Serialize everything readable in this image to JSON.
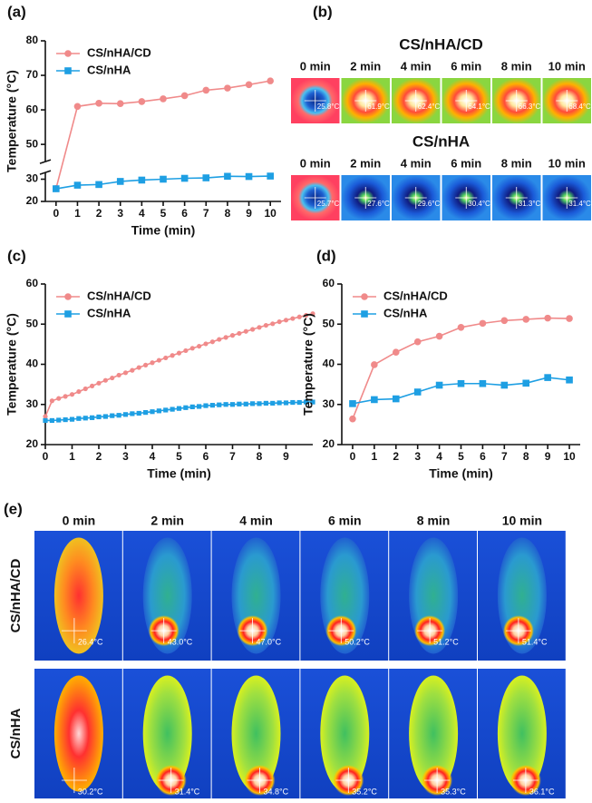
{
  "chart_data": [
    {
      "type": "line",
      "panel_label": "(a)",
      "xlabel": "Time (min)",
      "ylabel": "Temperature (°C)",
      "x": [
        0,
        1,
        2,
        3,
        4,
        5,
        6,
        7,
        8,
        9,
        10
      ],
      "xlim": [
        -0.5,
        10.5
      ],
      "xticks": [
        0,
        1,
        2,
        3,
        4,
        5,
        6,
        7,
        8,
        9,
        10
      ],
      "ylim": [
        20,
        80
      ],
      "ybreak": [
        33,
        45
      ],
      "yticks": [
        20,
        30,
        50,
        60,
        70,
        80
      ],
      "grid": false,
      "legend": "upper left",
      "series": [
        {
          "name": "CS/nHA/CD",
          "color": "#f08a8a",
          "marker": "circle",
          "values": [
            25.8,
            61.0,
            61.9,
            61.8,
            62.4,
            63.2,
            64.1,
            65.7,
            66.3,
            67.3,
            68.4
          ]
        },
        {
          "name": "CS/nHA",
          "color": "#1e9fe3",
          "marker": "square",
          "values": [
            25.7,
            27.3,
            27.6,
            29.0,
            29.6,
            30.0,
            30.4,
            30.6,
            31.3,
            31.2,
            31.4
          ]
        }
      ]
    },
    {
      "type": "line",
      "panel_label": "(c)",
      "xlabel": "Time (min)",
      "ylabel": "Temperature (°C)",
      "x": [
        0,
        0.25,
        0.5,
        0.75,
        1,
        1.25,
        1.5,
        1.75,
        2,
        2.25,
        2.5,
        2.75,
        3,
        3.25,
        3.5,
        3.75,
        4,
        4.25,
        4.5,
        4.75,
        5,
        5.25,
        5.5,
        5.75,
        6,
        6.25,
        6.5,
        6.75,
        7,
        7.25,
        7.5,
        7.75,
        8,
        8.25,
        8.5,
        8.75,
        9,
        9.25,
        9.5,
        9.75,
        10
      ],
      "xlim": [
        0,
        10
      ],
      "xticks": [
        0,
        1,
        2,
        3,
        4,
        5,
        6,
        7,
        8,
        9
      ],
      "ylim": [
        20,
        60
      ],
      "yticks": [
        20,
        30,
        40,
        50,
        60
      ],
      "grid": false,
      "legend": "upper left",
      "series": [
        {
          "name": "CS/nHA/CD",
          "color": "#f08a8a",
          "marker": "circle",
          "values": [
            27.0,
            30.9,
            31.5,
            32.0,
            32.5,
            33.2,
            33.9,
            34.6,
            35.3,
            36.0,
            36.6,
            37.3,
            37.9,
            38.5,
            39.2,
            39.8,
            40.4,
            41.0,
            41.6,
            42.2,
            42.8,
            43.4,
            44.0,
            44.5,
            45.1,
            45.6,
            46.2,
            46.7,
            47.2,
            47.7,
            48.2,
            48.7,
            49.2,
            49.7,
            50.1,
            50.6,
            51.0,
            51.4,
            51.8,
            52.2,
            52.6
          ]
        },
        {
          "name": "CS/nHA",
          "color": "#1e9fe3",
          "marker": "square",
          "values": [
            26.0,
            26.0,
            26.1,
            26.2,
            26.3,
            26.5,
            26.6,
            26.7,
            26.9,
            27.0,
            27.2,
            27.3,
            27.5,
            27.7,
            27.8,
            28.0,
            28.2,
            28.4,
            28.6,
            28.8,
            29.0,
            29.2,
            29.4,
            29.5,
            29.7,
            29.8,
            29.9,
            30.0,
            30.0,
            30.1,
            30.1,
            30.2,
            30.2,
            30.3,
            30.3,
            30.4,
            30.4,
            30.5,
            30.5,
            30.6,
            30.6
          ]
        }
      ]
    },
    {
      "type": "line",
      "panel_label": "(d)",
      "xlabel": "Time (min)",
      "ylabel": "Temperature (°C)",
      "x": [
        0,
        1,
        2,
        3,
        4,
        5,
        6,
        7,
        8,
        9,
        10
      ],
      "xlim": [
        -0.5,
        10.5
      ],
      "xticks": [
        0,
        1,
        2,
        3,
        4,
        5,
        6,
        7,
        8,
        9,
        10
      ],
      "ylim": [
        20,
        60
      ],
      "yticks": [
        20,
        30,
        40,
        50,
        60
      ],
      "grid": false,
      "legend": "upper left",
      "series": [
        {
          "name": "CS/nHA/CD",
          "color": "#f08a8a",
          "marker": "circle",
          "values": [
            26.4,
            39.9,
            43.0,
            45.6,
            47.0,
            49.2,
            50.2,
            50.9,
            51.2,
            51.5,
            51.4
          ]
        },
        {
          "name": "CS/nHA",
          "color": "#1e9fe3",
          "marker": "square",
          "values": [
            30.2,
            31.2,
            31.4,
            33.1,
            34.8,
            35.2,
            35.2,
            34.8,
            35.3,
            36.7,
            36.1
          ]
        }
      ]
    }
  ],
  "panel_b": {
    "label": "(b)",
    "groups": [
      {
        "title": "CS/nHA/CD",
        "times": [
          "0 min",
          "2 min",
          "4 min",
          "6 min",
          "8 min",
          "10 min"
        ],
        "readings": [
          "25.8°C",
          "61.9°C",
          "62.4°C",
          "64.1°C",
          "66.3°C",
          "68.4°C"
        ]
      },
      {
        "title": "CS/nHA",
        "times": [
          "0 min",
          "2 min",
          "4 min",
          "6 min",
          "8 min",
          "10 min"
        ],
        "readings": [
          "25.7°C",
          "27.6°C",
          "29.6°C",
          "30.4°C",
          "31.3°C",
          "31.4°C"
        ]
      }
    ]
  },
  "panel_e": {
    "label": "(e)",
    "times": [
      "0 min",
      "2 min",
      "4 min",
      "6 min",
      "8 min",
      "10 min"
    ],
    "rows": [
      {
        "name": "CS/nHA/CD",
        "readings": [
          "26.4°C",
          "43.0°C",
          "47.0°C",
          "50.2°C",
          "51.2°C",
          "51.4°C"
        ]
      },
      {
        "name": "CS/nHA",
        "readings": [
          "30.2°C",
          "31.4°C",
          "34.8°C",
          "35.2°C",
          "35.3°C",
          "36.1°C"
        ]
      }
    ]
  }
}
